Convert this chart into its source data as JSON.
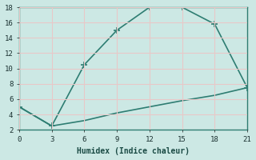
{
  "upper_x": [
    0,
    3,
    6,
    9,
    12,
    15,
    18,
    21
  ],
  "upper_y": [
    5,
    2.5,
    10.5,
    15,
    18,
    18,
    15.8,
    7.5
  ],
  "lower_x": [
    0,
    3,
    6,
    9,
    12,
    15,
    18,
    21
  ],
  "lower_y": [
    5,
    2.5,
    3.2,
    4.2,
    5.0,
    5.8,
    6.5,
    7.5
  ],
  "line_color": "#2e7d72",
  "bg_color": "#cce8e4",
  "grid_color": "#e8c8c8",
  "xlabel": "Humidex (Indice chaleur)",
  "xlim": [
    0,
    21
  ],
  "ylim": [
    2,
    18
  ],
  "xticks": [
    0,
    3,
    6,
    9,
    12,
    15,
    18,
    21
  ],
  "yticks": [
    2,
    4,
    6,
    8,
    10,
    12,
    14,
    16,
    18
  ],
  "marker": "+",
  "marker_size": 6,
  "linewidth": 1.2,
  "tick_fontsize": 6.5,
  "xlabel_fontsize": 7
}
